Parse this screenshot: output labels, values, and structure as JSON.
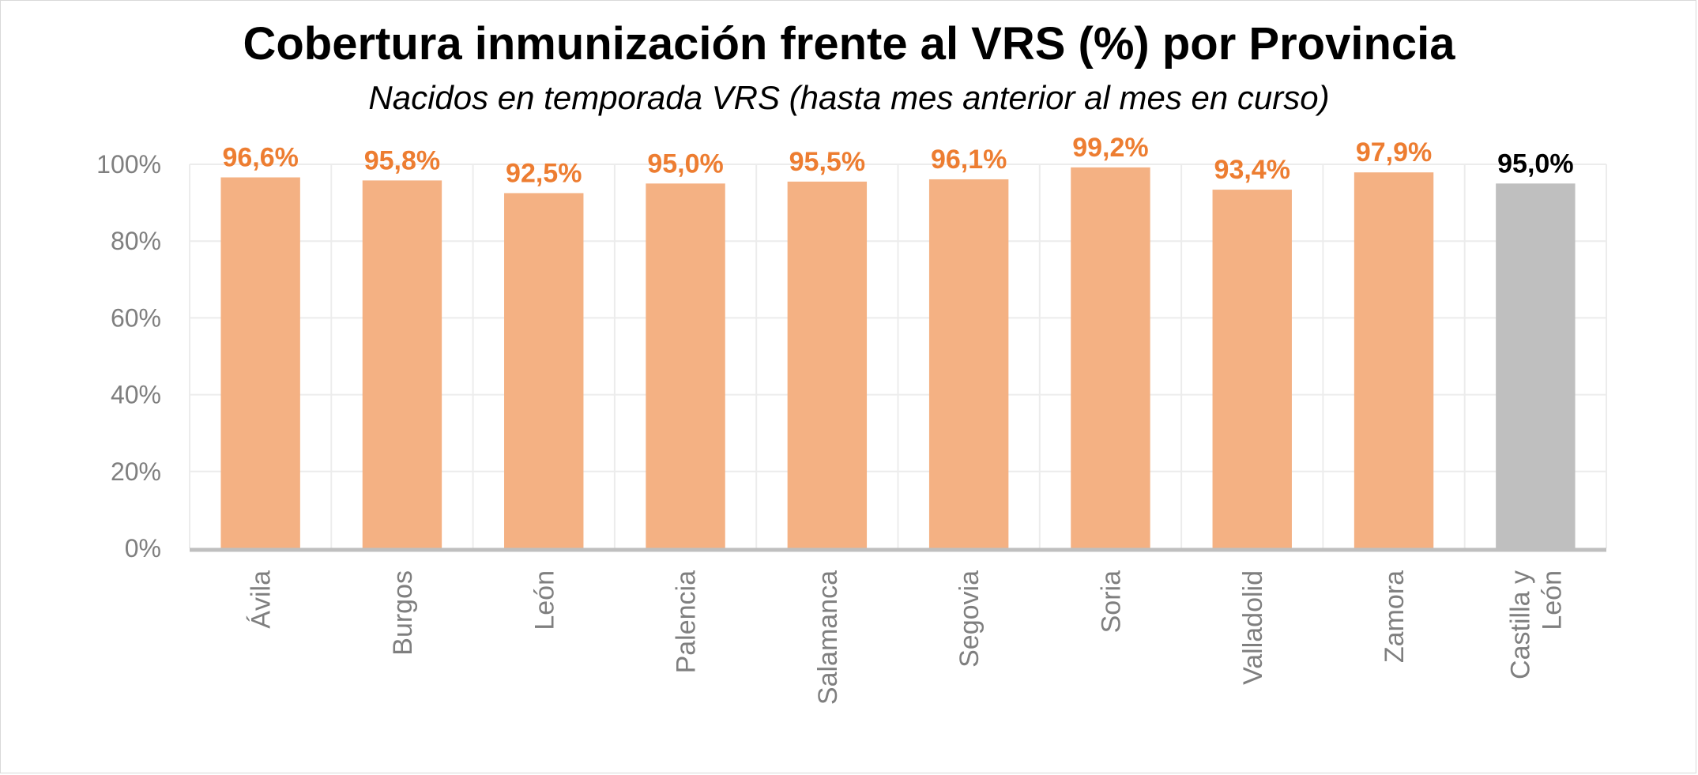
{
  "chart_data": {
    "type": "bar",
    "title": "Cobertura inmunización frente al VRS (%) por Provincia",
    "subtitle": "Nacidos en temporada VRS (hasta mes anterior al mes en curso)",
    "categories": [
      "Ávila",
      "Burgos",
      "León",
      "Palencia",
      "Salamanca",
      "Segovia",
      "Soria",
      "Valladolid",
      "Zamora",
      "Castilla y León"
    ],
    "category_lines": [
      [
        "Ávila"
      ],
      [
        "Burgos"
      ],
      [
        "León"
      ],
      [
        "Palencia"
      ],
      [
        "Salamanca"
      ],
      [
        "Segovia"
      ],
      [
        "Soria"
      ],
      [
        "Valladolid"
      ],
      [
        "Zamora"
      ],
      [
        "Castilla y",
        "León"
      ]
    ],
    "values": [
      96.6,
      95.8,
      92.5,
      95.0,
      95.5,
      96.1,
      99.2,
      93.4,
      97.9,
      95.0
    ],
    "data_labels": [
      "96,6%",
      "95,8%",
      "92,5%",
      "95,0%",
      "95,5%",
      "96,1%",
      "99,2%",
      "93,4%",
      "97,9%",
      "95,0%"
    ],
    "ylim": [
      0,
      100
    ],
    "yticks": [
      0,
      20,
      40,
      60,
      80,
      100
    ],
    "ytick_labels": [
      "0%",
      "20%",
      "40%",
      "60%",
      "80%",
      "100%"
    ],
    "xlabel": "",
    "ylabel": "",
    "grid": true,
    "legend": "none",
    "colors": {
      "province_bar": "#f4b183",
      "province_label": "#ed7d31",
      "total_bar": "#bfbfbf",
      "total_label": "#000000",
      "grid": "#ececec",
      "axis": "#bfbfbf",
      "tick_text": "#7f7f7f"
    }
  }
}
